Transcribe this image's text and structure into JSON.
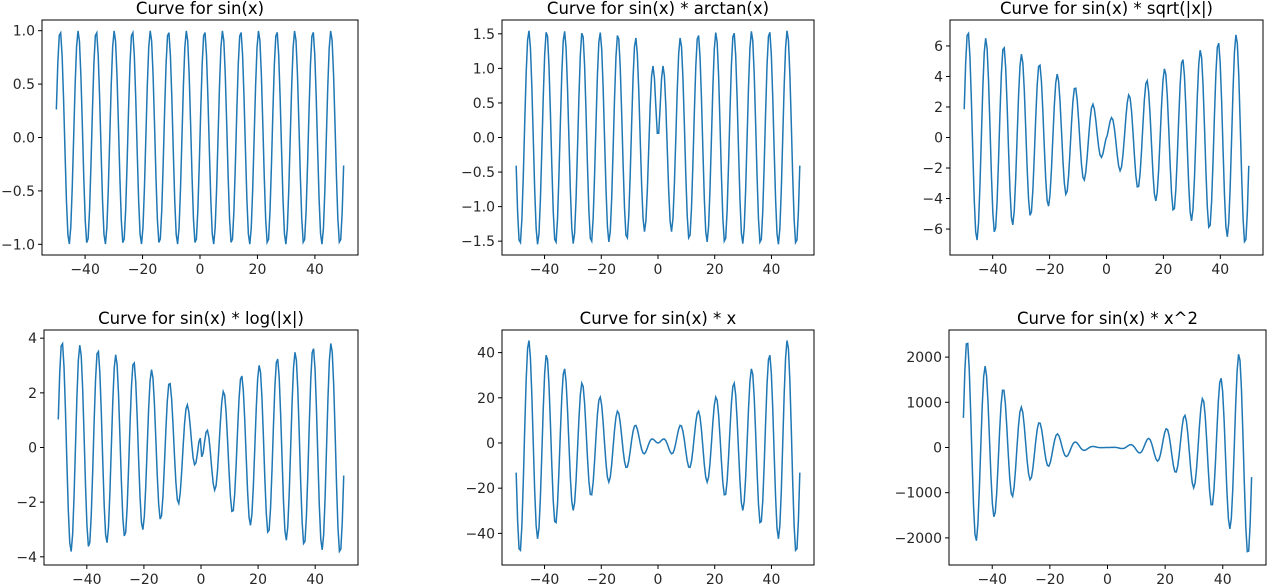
{
  "chart_data": [
    {
      "type": "line",
      "title": "Curve for sin(x)",
      "function": "sin(x)",
      "x_range": [
        -50,
        50
      ],
      "samples": 200,
      "xlim": [
        -55,
        55
      ],
      "ylim": [
        -1.1,
        1.1
      ],
      "xticks": [
        -40,
        -20,
        0,
        20,
        40
      ],
      "yticks": [
        -1.0,
        -0.5,
        0.0,
        0.5,
        1.0
      ],
      "ytick_labels": [
        "−1.0",
        "−0.5",
        "0.0",
        "0.5",
        "1.0"
      ],
      "xtick_labels": [
        "−40",
        "−20",
        "0",
        "20",
        "40"
      ],
      "color": "#1f77b4",
      "grid": false
    },
    {
      "type": "line",
      "title": "Curve for sin(x) * arctan(x)",
      "function": "sin(x)*atan(x)",
      "x_range": [
        -50,
        50
      ],
      "samples": 200,
      "xlim": [
        -55,
        55
      ],
      "ylim": [
        -1.7,
        1.7
      ],
      "xticks": [
        -40,
        -20,
        0,
        20,
        40
      ],
      "yticks": [
        -1.5,
        -1.0,
        -0.5,
        0.0,
        0.5,
        1.0,
        1.5
      ],
      "ytick_labels": [
        "−1.5",
        "−1.0",
        "−0.5",
        "0.0",
        "0.5",
        "1.0",
        "1.5"
      ],
      "xtick_labels": [
        "−40",
        "−20",
        "0",
        "20",
        "40"
      ],
      "color": "#1f77b4",
      "grid": false
    },
    {
      "type": "line",
      "title": "Curve for sin(x) * sqrt(|x|)",
      "function": "sin(x)*sqrt(abs(x))",
      "x_range": [
        -50,
        50
      ],
      "samples": 200,
      "xlim": [
        -55,
        55
      ],
      "ylim": [
        -7.7,
        7.7
      ],
      "xticks": [
        -40,
        -20,
        0,
        20,
        40
      ],
      "yticks": [
        -6,
        -4,
        -2,
        0,
        2,
        4,
        6
      ],
      "ytick_labels": [
        "−6",
        "−4",
        "−2",
        "0",
        "2",
        "4",
        "6"
      ],
      "xtick_labels": [
        "−40",
        "−20",
        "0",
        "20",
        "40"
      ],
      "color": "#1f77b4",
      "grid": false
    },
    {
      "type": "line",
      "title": "Curve for sin(x) * log(|x|)",
      "function": "sin(x)*log(abs(x))",
      "x_range": [
        -50,
        50
      ],
      "samples": 200,
      "xlim": [
        -55,
        55
      ],
      "ylim": [
        -4.3,
        4.3
      ],
      "xticks": [
        -40,
        -20,
        0,
        20,
        40
      ],
      "yticks": [
        -4,
        -2,
        0,
        2,
        4
      ],
      "ytick_labels": [
        "−4",
        "−2",
        "0",
        "2",
        "4"
      ],
      "xtick_labels": [
        "−40",
        "−20",
        "0",
        "20",
        "40"
      ],
      "color": "#1f77b4",
      "grid": false
    },
    {
      "type": "line",
      "title": "Curve for sin(x) * x",
      "function": "sin(x)*x",
      "x_range": [
        -50,
        50
      ],
      "samples": 200,
      "xlim": [
        -55,
        55
      ],
      "ylim": [
        -54,
        50
      ],
      "xticks": [
        -40,
        -20,
        0,
        20,
        40
      ],
      "yticks": [
        -40,
        -20,
        0,
        20,
        40
      ],
      "ytick_labels": [
        "−40",
        "−20",
        "0",
        "20",
        "40"
      ],
      "xtick_labels": [
        "−40",
        "−20",
        "0",
        "20",
        "40"
      ],
      "color": "#1f77b4",
      "grid": false
    },
    {
      "type": "line",
      "title": "Curve for sin(x) * x^2",
      "function": "sin(x)*x^2",
      "x_range": [
        -50,
        50
      ],
      "samples": 200,
      "xlim": [
        -55,
        55
      ],
      "ylim": [
        -2600,
        2600
      ],
      "xticks": [
        -40,
        -20,
        0,
        20,
        40
      ],
      "yticks": [
        -2000,
        -1000,
        0,
        1000,
        2000
      ],
      "ytick_labels": [
        "−2000",
        "−1000",
        "0",
        "1000",
        "2000"
      ],
      "xtick_labels": [
        "−40",
        "−20",
        "0",
        "20",
        "40"
      ],
      "color": "#1f77b4",
      "grid": false
    }
  ]
}
